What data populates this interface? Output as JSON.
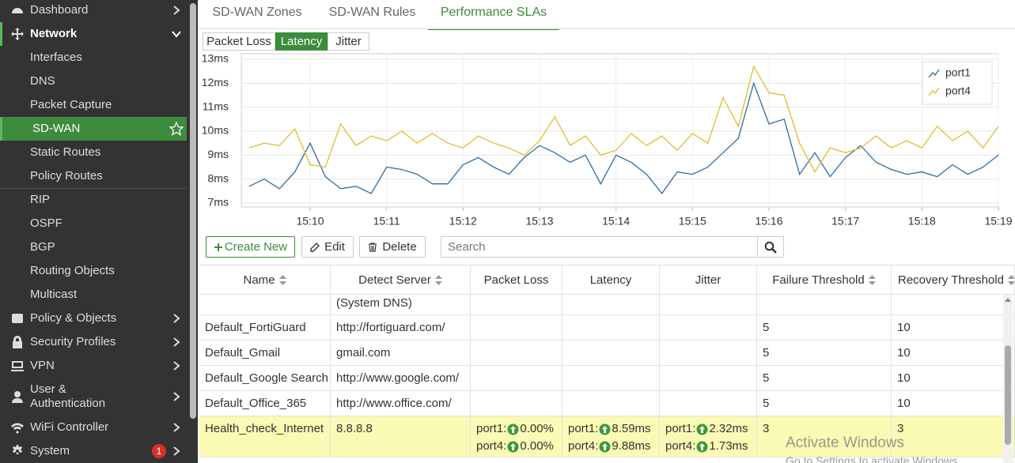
{
  "sidebar": {
    "items": [
      {
        "label": "Dashboard"
      },
      {
        "label": "Network"
      },
      {
        "label": "Interfaces"
      },
      {
        "label": "DNS"
      },
      {
        "label": "Packet Capture"
      },
      {
        "label": "SD-WAN"
      },
      {
        "label": "Static Routes"
      },
      {
        "label": "Policy Routes"
      },
      {
        "label": "RIP"
      },
      {
        "label": "OSPF"
      },
      {
        "label": "BGP"
      },
      {
        "label": "Routing Objects"
      },
      {
        "label": "Multicast"
      },
      {
        "label": "Policy & Objects"
      },
      {
        "label": "Security Profiles"
      },
      {
        "label": "VPN"
      },
      {
        "label": "User & Authentication"
      },
      {
        "label": "WiFi Controller"
      },
      {
        "label": "System",
        "badge": "1"
      }
    ]
  },
  "tabs": [
    "SD-WAN Zones",
    "SD-WAN Rules",
    "Performance SLAs"
  ],
  "metric_tabs": [
    "Packet Loss",
    "Latency",
    "Jitter"
  ],
  "chart_data": {
    "type": "line",
    "x": [
      9.2,
      9.4,
      9.6,
      9.8,
      10.0,
      10.2,
      10.4,
      10.6,
      10.8,
      11.0,
      11.2,
      11.4,
      11.6,
      11.8,
      12.0,
      12.2,
      12.4,
      12.6,
      12.8,
      13.0,
      13.2,
      13.4,
      13.6,
      13.8,
      14.0,
      14.2,
      14.4,
      14.6,
      14.8,
      15.0,
      15.2,
      15.4,
      15.6,
      15.8,
      16.0,
      16.2,
      16.4,
      16.6,
      16.8,
      17.0,
      17.2,
      17.4,
      17.6,
      17.8,
      18.0,
      18.2,
      18.4,
      18.6,
      18.8,
      19.0
    ],
    "series": [
      {
        "name": "port1",
        "color": "#2e6da4",
        "values": [
          7.7,
          8.0,
          7.6,
          8.3,
          9.5,
          8.1,
          7.6,
          7.7,
          7.4,
          8.5,
          8.4,
          8.2,
          7.8,
          7.8,
          8.6,
          8.9,
          8.5,
          8.2,
          8.9,
          9.4,
          9.1,
          8.7,
          9.0,
          7.8,
          9.0,
          8.7,
          8.2,
          7.4,
          8.3,
          8.2,
          8.5,
          9.1,
          9.7,
          12.0,
          10.3,
          10.5,
          8.2,
          9.1,
          8.1,
          8.9,
          9.4,
          8.7,
          8.4,
          8.2,
          8.3,
          8.1,
          8.6,
          8.2,
          8.5,
          9.0
        ]
      },
      {
        "name": "port4",
        "color": "#e2bd2a",
        "values": [
          9.3,
          9.5,
          9.4,
          10.1,
          8.6,
          8.5,
          10.3,
          9.4,
          9.8,
          9.6,
          10.0,
          9.5,
          9.9,
          9.5,
          9.3,
          9.8,
          9.5,
          9.3,
          9.0,
          9.6,
          10.6,
          9.4,
          9.8,
          9.0,
          9.2,
          9.9,
          9.4,
          9.8,
          9.2,
          9.9,
          9.5,
          11.4,
          10.2,
          12.7,
          11.6,
          11.5,
          9.5,
          8.3,
          9.3,
          9.1,
          9.3,
          9.8,
          9.3,
          9.6,
          9.3,
          10.2,
          9.6,
          10.0,
          9.3,
          10.2
        ]
      }
    ],
    "xlim": [
      9.1,
      19.0
    ],
    "xticks": [
      {
        "value": 10,
        "label": "15:10"
      },
      {
        "value": 11,
        "label": "15:11"
      },
      {
        "value": 12,
        "label": "15:12"
      },
      {
        "value": 13,
        "label": "15:13"
      },
      {
        "value": 14,
        "label": "15:14"
      },
      {
        "value": 15,
        "label": "15:15"
      },
      {
        "value": 16,
        "label": "15:16"
      },
      {
        "value": 17,
        "label": "15:17"
      },
      {
        "value": 18,
        "label": "15:18"
      },
      {
        "value": 19,
        "label": "15:19"
      }
    ],
    "ylim": [
      7,
      13
    ],
    "yticks": [
      {
        "value": 7,
        "label": "7ms"
      },
      {
        "value": 8,
        "label": "8ms"
      },
      {
        "value": 9,
        "label": "9ms"
      },
      {
        "value": 10,
        "label": "10ms"
      },
      {
        "value": 11,
        "label": "11ms"
      },
      {
        "value": 12,
        "label": "12ms"
      },
      {
        "value": 13,
        "label": "13ms"
      }
    ],
    "grid": true,
    "legend": "top-right"
  },
  "toolbar": {
    "buttons": [
      "Create New",
      "Edit",
      "Delete"
    ],
    "search_placeholder": "Search"
  },
  "table": {
    "columns": [
      "Name",
      "Detect Server",
      "Packet Loss",
      "Latency",
      "Jitter",
      "Failure Threshold",
      "Recovery Threshold"
    ],
    "rows": [
      [
        null,
        "(System DNS)",
        null,
        null,
        null,
        null,
        null
      ],
      [
        "Default_FortiGuard",
        "http://fortiguard.com/",
        null,
        null,
        null,
        "5",
        "10"
      ],
      [
        "Default_Gmail",
        "gmail.com",
        null,
        null,
        null,
        "5",
        "10"
      ],
      [
        "Default_Google Search",
        "http://www.google.com/",
        null,
        null,
        null,
        "5",
        "10"
      ],
      [
        "Default_Office_365",
        "http://www.office.com/",
        null,
        null,
        null,
        "5",
        "10"
      ],
      [
        "Health_check_Internet",
        "8.8.8.8",
        [
          {
            "port": "port1:",
            "value": "0.00%"
          },
          {
            "port": "port4:",
            "value": "0.00%"
          }
        ],
        [
          {
            "port": "port1:",
            "value": "8.59ms"
          },
          {
            "port": "port4:",
            "value": "9.88ms"
          }
        ],
        [
          {
            "port": "port1:",
            "value": "2.32ms"
          },
          {
            "port": "port4:",
            "value": "1.73ms"
          }
        ],
        "3",
        "3"
      ]
    ]
  },
  "watermark": {
    "title": "Activate Windows",
    "text": "Go to Settings to activate Windows."
  }
}
